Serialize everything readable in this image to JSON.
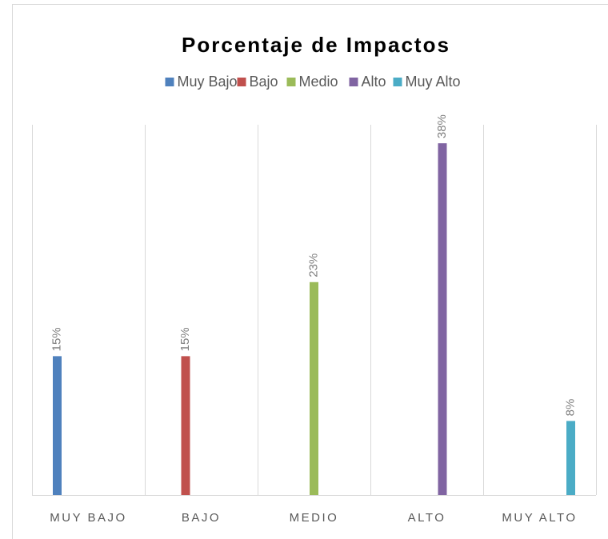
{
  "chart_data": {
    "type": "bar",
    "title": "Porcentaje de Impactos",
    "categories": [
      "MUY BAJO",
      "BAJO",
      "MEDIO",
      "ALTO",
      "MUY ALTO"
    ],
    "series": [
      {
        "name": "Muy Bajo",
        "color": "#4f81bd",
        "values": [
          15,
          null,
          null,
          null,
          null
        ],
        "value_labels": [
          "15%",
          null,
          null,
          null,
          null
        ]
      },
      {
        "name": "Bajo",
        "color": "#c0504d",
        "values": [
          null,
          15,
          null,
          null,
          null
        ],
        "value_labels": [
          null,
          "15%",
          null,
          null,
          null
        ]
      },
      {
        "name": "Medio",
        "color": "#9bbb59",
        "values": [
          null,
          null,
          23,
          null,
          null
        ],
        "value_labels": [
          null,
          null,
          "23%",
          null,
          null
        ]
      },
      {
        "name": "Alto",
        "color": "#8064a2",
        "values": [
          null,
          null,
          null,
          38,
          null
        ],
        "value_labels": [
          null,
          null,
          null,
          "38%",
          null
        ]
      },
      {
        "name": "Muy Alto",
        "color": "#4bacc6",
        "values": [
          null,
          null,
          null,
          null,
          8
        ],
        "value_labels": [
          null,
          null,
          null,
          null,
          "8%"
        ]
      }
    ],
    "ylim": [
      0,
      40
    ],
    "legend": "top"
  }
}
